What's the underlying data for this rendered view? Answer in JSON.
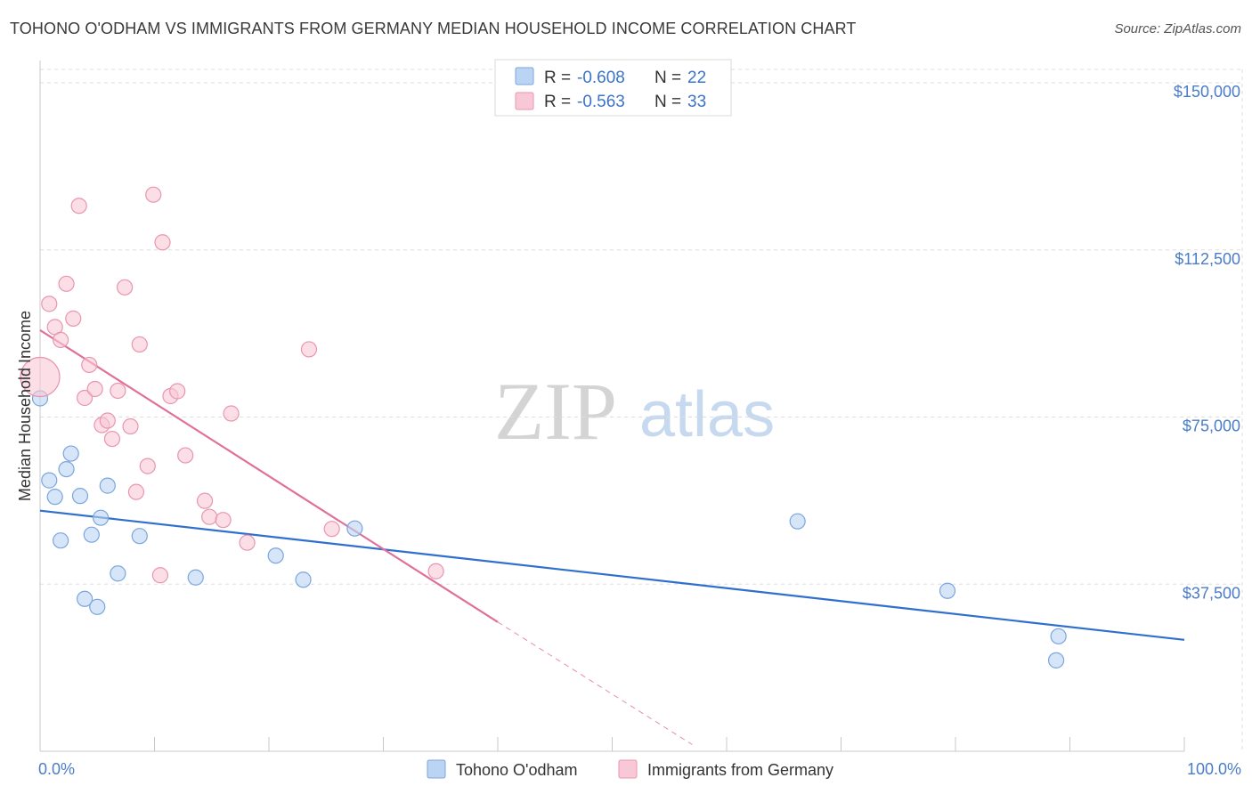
{
  "title": "TOHONO O'ODHAM VS IMMIGRANTS FROM GERMANY MEDIAN HOUSEHOLD INCOME CORRELATION CHART",
  "source": "Source: ZipAtlas.com",
  "watermark": {
    "zip": "ZIP",
    "atlas": "atlas"
  },
  "colors": {
    "blue_fill": "#bcd4f4",
    "blue_stroke": "#7aa6dc",
    "blue_line": "#2f6fce",
    "pink_fill": "#f9c8d6",
    "pink_stroke": "#e896b0",
    "pink_line": "#e0709a",
    "grid": "#dddddd",
    "tick_text": "#4a7cc7"
  },
  "legend": {
    "rows": [
      {
        "r_label": "R =",
        "r_value": "-0.608",
        "n_label": "N =",
        "n_value": "22"
      },
      {
        "r_label": "R =",
        "r_value": "-0.563",
        "n_label": "N =",
        "n_value": "33"
      }
    ]
  },
  "chart_data": {
    "type": "scatter",
    "title": "TOHONO O'ODHAM VS IMMIGRANTS FROM GERMANY MEDIAN HOUSEHOLD INCOME CORRELATION CHART",
    "xlabel": "",
    "ylabel": "Median Household Income",
    "xlim": [
      0,
      100
    ],
    "ylim": [
      0,
      157000
    ],
    "x_tick_labels": [
      "0.0%",
      "100.0%"
    ],
    "y_ticks": [
      {
        "value": 37500,
        "label": "$37,500"
      },
      {
        "value": 75000,
        "label": "$75,000"
      },
      {
        "value": 112500,
        "label": "$112,500"
      },
      {
        "value": 150000,
        "label": "$150,000"
      }
    ],
    "series": [
      {
        "name": "Tohono O'odham",
        "color": "blue",
        "r": -0.608,
        "n": 22,
        "points": [
          {
            "x": 0.0,
            "y": 79200,
            "big": false
          },
          {
            "x": 0.8,
            "y": 60800,
            "big": false
          },
          {
            "x": 1.3,
            "y": 57100,
            "big": false
          },
          {
            "x": 1.8,
            "y": 47300,
            "big": false
          },
          {
            "x": 2.3,
            "y": 63300,
            "big": false
          },
          {
            "x": 2.7,
            "y": 66800,
            "big": false
          },
          {
            "x": 3.5,
            "y": 57300,
            "big": false
          },
          {
            "x": 3.9,
            "y": 34200,
            "big": false
          },
          {
            "x": 4.5,
            "y": 48600,
            "big": false
          },
          {
            "x": 5.0,
            "y": 32400,
            "big": false
          },
          {
            "x": 5.3,
            "y": 52400,
            "big": false
          },
          {
            "x": 5.9,
            "y": 59600,
            "big": false
          },
          {
            "x": 6.8,
            "y": 39900,
            "big": false
          },
          {
            "x": 8.7,
            "y": 48300,
            "big": false
          },
          {
            "x": 13.6,
            "y": 39000,
            "big": false
          },
          {
            "x": 20.6,
            "y": 43900,
            "big": false
          },
          {
            "x": 23.0,
            "y": 38500,
            "big": false
          },
          {
            "x": 27.5,
            "y": 50000,
            "big": false
          },
          {
            "x": 66.2,
            "y": 51600,
            "big": false
          },
          {
            "x": 79.3,
            "y": 36000,
            "big": false
          },
          {
            "x": 89.0,
            "y": 25800,
            "big": false
          },
          {
            "x": 88.8,
            "y": 20400,
            "big": false
          }
        ],
        "trend": {
          "x0": 0,
          "y0": 54000,
          "x1": 100,
          "y1": 25000,
          "dash_to": null
        }
      },
      {
        "name": "Immigrants from Germany",
        "color": "pink",
        "r": -0.563,
        "n": 33,
        "points": [
          {
            "x": 0.0,
            "y": 84000,
            "big": true
          },
          {
            "x": 0.8,
            "y": 100400,
            "big": false
          },
          {
            "x": 1.3,
            "y": 95200,
            "big": false
          },
          {
            "x": 1.8,
            "y": 92300,
            "big": false
          },
          {
            "x": 2.3,
            "y": 104900,
            "big": false
          },
          {
            "x": 2.9,
            "y": 97100,
            "big": false
          },
          {
            "x": 3.4,
            "y": 122400,
            "big": false
          },
          {
            "x": 3.9,
            "y": 79300,
            "big": false
          },
          {
            "x": 4.3,
            "y": 86700,
            "big": false
          },
          {
            "x": 4.8,
            "y": 81300,
            "big": false
          },
          {
            "x": 5.4,
            "y": 73200,
            "big": false
          },
          {
            "x": 5.9,
            "y": 74200,
            "big": false
          },
          {
            "x": 6.3,
            "y": 70100,
            "big": false
          },
          {
            "x": 6.8,
            "y": 80900,
            "big": false
          },
          {
            "x": 7.4,
            "y": 104100,
            "big": false
          },
          {
            "x": 7.9,
            "y": 72900,
            "big": false
          },
          {
            "x": 8.4,
            "y": 58200,
            "big": false
          },
          {
            "x": 8.7,
            "y": 91300,
            "big": false
          },
          {
            "x": 9.4,
            "y": 64000,
            "big": false
          },
          {
            "x": 9.9,
            "y": 124900,
            "big": false
          },
          {
            "x": 10.5,
            "y": 39500,
            "big": false
          },
          {
            "x": 10.7,
            "y": 114200,
            "big": false
          },
          {
            "x": 11.4,
            "y": 79700,
            "big": false
          },
          {
            "x": 12.0,
            "y": 80800,
            "big": false
          },
          {
            "x": 12.7,
            "y": 66400,
            "big": false
          },
          {
            "x": 14.4,
            "y": 56200,
            "big": false
          },
          {
            "x": 14.8,
            "y": 52600,
            "big": false
          },
          {
            "x": 16.0,
            "y": 51900,
            "big": false
          },
          {
            "x": 16.7,
            "y": 75800,
            "big": false
          },
          {
            "x": 18.1,
            "y": 46800,
            "big": false
          },
          {
            "x": 23.5,
            "y": 90200,
            "big": false
          },
          {
            "x": 25.5,
            "y": 49900,
            "big": false
          },
          {
            "x": 34.6,
            "y": 40400,
            "big": false
          }
        ],
        "trend": {
          "x0": 0,
          "y0": 94500,
          "x1": 40,
          "y1": 29000,
          "dash_to": {
            "x": 57,
            "y": 1500
          }
        }
      }
    ]
  }
}
